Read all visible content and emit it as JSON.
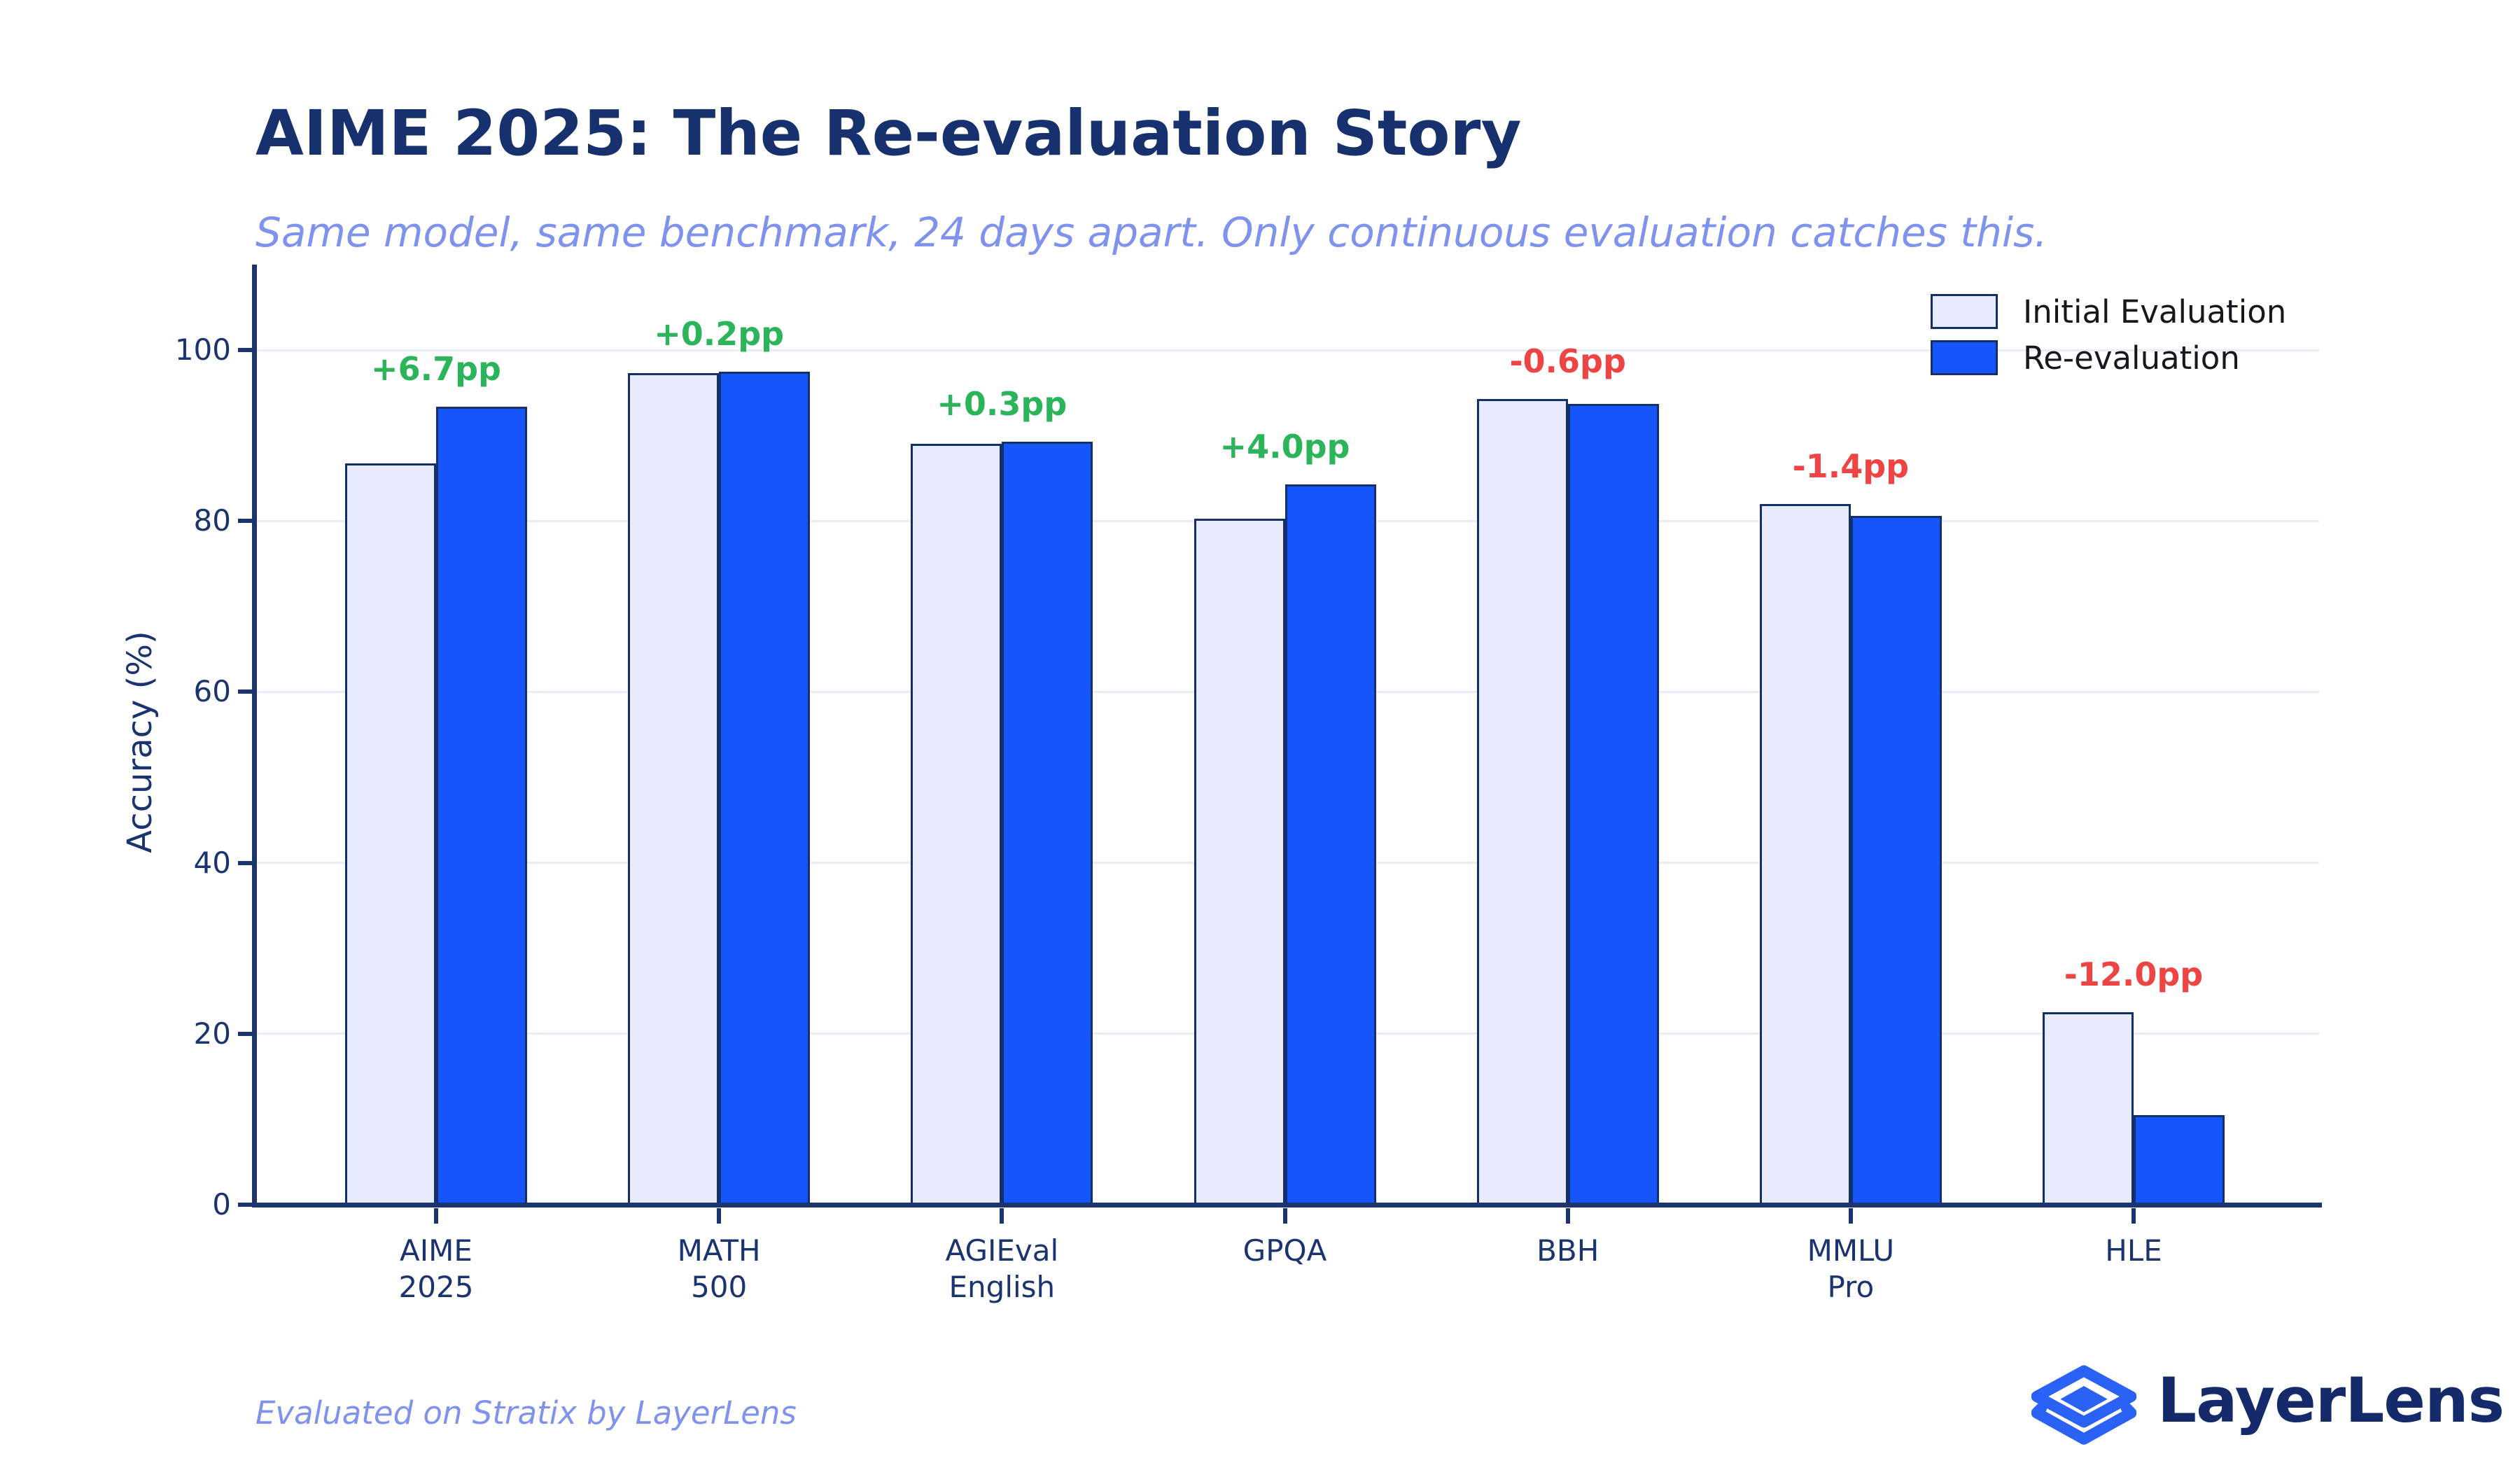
{
  "chart_data": {
    "type": "bar",
    "title": "AIME 2025: The Re-evaluation Story",
    "subtitle": "Same model, same benchmark, 24 days apart. Only continuous evaluation catches this.",
    "xlabel": "",
    "ylabel": "Accuracy (%)",
    "ylim": [
      0,
      110
    ],
    "yticks": [
      0,
      20,
      40,
      60,
      80,
      100
    ],
    "grid": "horizontal-light",
    "legend_position": "top-right",
    "categories": [
      "AIME\n2025",
      "MATH\n500",
      "AGIEval\nEnglish",
      "GPQA",
      "BBH",
      "MMLU\nPro",
      "HLE"
    ],
    "series": [
      {
        "name": "Initial Evaluation",
        "values": [
          86.7,
          97.3,
          89.0,
          80.3,
          94.3,
          82.0,
          22.5
        ]
      },
      {
        "name": "Re-evaluation",
        "values": [
          93.4,
          97.5,
          89.3,
          84.3,
          93.7,
          80.6,
          10.5
        ]
      }
    ],
    "annotations": [
      {
        "category": "AIME 2025",
        "label": "+6.7pp",
        "trend": "up"
      },
      {
        "category": "MATH 500",
        "label": "+0.2pp",
        "trend": "up"
      },
      {
        "category": "AGIEval English",
        "label": "+0.3pp",
        "trend": "up"
      },
      {
        "category": "GPQA",
        "label": "+4.0pp",
        "trend": "up"
      },
      {
        "category": "BBH",
        "label": "-0.6pp",
        "trend": "down"
      },
      {
        "category": "MMLU Pro",
        "label": "-1.4pp",
        "trend": "down"
      },
      {
        "category": "HLE",
        "label": "-12.0pp",
        "trend": "down"
      }
    ]
  },
  "footer": {
    "caption": "Evaluated on Stratix by LayerLens"
  },
  "brand": {
    "name": "LayerLens",
    "logo_icon": "layers-diamond-icon"
  },
  "colors": {
    "background": "#ffffff",
    "axis_navy": "#1b3470",
    "title_navy": "#17316e",
    "subtitle_periwinkle": "#7e92ee",
    "initial_fill": "#e7ebfb",
    "reeval_fill": "#1555fa",
    "bar_edge": "#14306b",
    "gridline": "#e9edf8",
    "positive_green": "#2cb45a",
    "negative_red": "#ef4444",
    "legend_text": "#16181d",
    "logo_blue": "#2b62f6",
    "logo_navy": "#152a6a"
  }
}
